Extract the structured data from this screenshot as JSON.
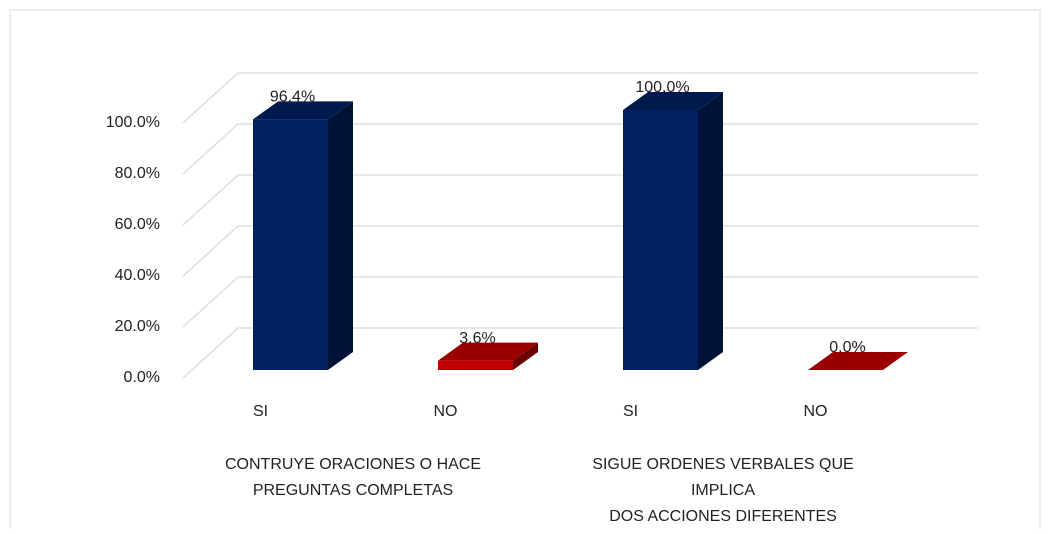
{
  "chart_data": {
    "type": "bar3d",
    "categories": [
      "SI",
      "NO",
      "SI",
      "NO"
    ],
    "values": [
      96.4,
      3.6,
      100.0,
      0.0
    ],
    "value_labels": [
      "96.4%",
      "3.6%",
      "100.0%",
      "0.0%"
    ],
    "colors": [
      "#002060",
      "#c00000",
      "#002060",
      "#c00000"
    ],
    "groups": [
      {
        "label": [
          "CONTRUYE ORACIONES O HACE",
          "PREGUNTAS COMPLETAS"
        ]
      },
      {
        "label": [
          "SIGUE ORDENES VERBALES QUE",
          "IMPLICA",
          "DOS ACCIONES DIFERENTES"
        ]
      }
    ],
    "ylim": [
      0,
      100
    ],
    "yticks": [
      {
        "value": 0,
        "label": "0.0%"
      },
      {
        "value": 20,
        "label": "20.0%"
      },
      {
        "value": 40,
        "label": "40.0%"
      },
      {
        "value": 60,
        "label": "60.0%"
      },
      {
        "value": 80,
        "label": "80.0%"
      },
      {
        "value": 100,
        "label": "100.0%"
      }
    ],
    "grid": true
  }
}
